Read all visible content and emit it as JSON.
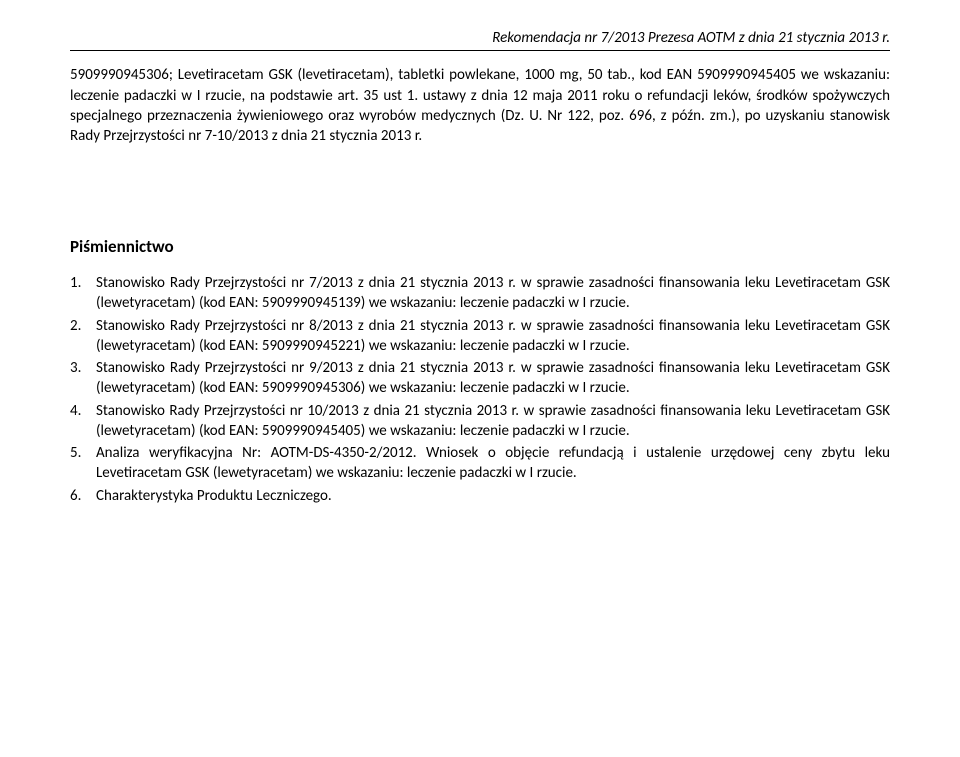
{
  "header": "Rekomendacja nr 7/2013 Prezesa AOTM z dnia 21 stycznia 2013 r.",
  "body": "5909990945306; Levetiracetam GSK (levetiracetam), tabletki powlekane, 1000 mg, 50 tab., kod EAN 5909990945405 we wskazaniu: leczenie padaczki w I rzucie, na podstawie art. 35 ust 1. ustawy z dnia 12 maja 2011 roku o refundacji leków, środków spożywczych specjalnego przeznaczenia żywieniowego oraz wyrobów medycznych (Dz. U. Nr 122, poz. 696, z późn. zm.), po uzyskaniu stanowisk Rady Przejrzystości nr 7-10/2013 z dnia 21 stycznia 2013 r.",
  "section_title": "Piśmiennictwo",
  "refs": [
    {
      "n": "1.",
      "t": "Stanowisko Rady Przejrzystości nr 7/2013 z dnia 21 stycznia 2013 r. w sprawie zasadności finansowania leku Levetiracetam GSK (lewetyracetam) (kod EAN: 5909990945139) we wskazaniu: leczenie padaczki w I rzucie."
    },
    {
      "n": "2.",
      "t": "Stanowisko Rady Przejrzystości nr 8/2013 z dnia 21 stycznia 2013 r. w sprawie zasadności finansowania leku Levetiracetam GSK (lewetyracetam) (kod EAN: 5909990945221) we wskazaniu: leczenie padaczki w I rzucie."
    },
    {
      "n": "3.",
      "t": "Stanowisko Rady Przejrzystości nr 9/2013 z dnia 21 stycznia 2013 r. w sprawie zasadności finansowania leku Levetiracetam GSK (lewetyracetam) (kod EAN: 5909990945306) we wskazaniu: leczenie padaczki w I rzucie."
    },
    {
      "n": "4.",
      "t": "Stanowisko Rady Przejrzystości nr 10/2013 z dnia 21 stycznia 2013 r. w sprawie zasadności finansowania leku Levetiracetam GSK (lewetyracetam) (kod EAN: 5909990945405) we wskazaniu: leczenie padaczki w I rzucie."
    },
    {
      "n": "5.",
      "t": "Analiza weryfikacyjna Nr: AOTM-DS-4350-2/2012. Wniosek o objęcie refundacją i ustalenie urzędowej ceny zbytu leku Levetiracetam GSK (lewetyracetam) we wskazaniu: leczenie padaczki w I rzucie."
    },
    {
      "n": "6.",
      "t": "Charakterystyka Produktu Leczniczego."
    }
  ]
}
